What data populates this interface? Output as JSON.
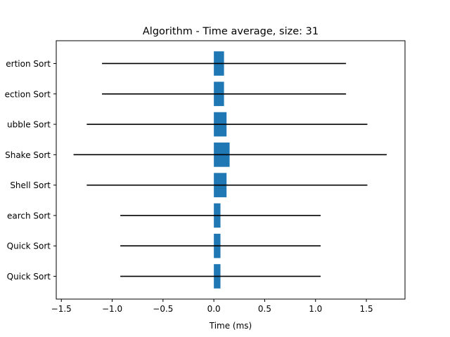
{
  "chart_data": {
    "type": "bar",
    "orientation": "horizontal",
    "title": "Algorithm - Time average, size: 31",
    "xlabel": "Time (ms)",
    "ylabel": "",
    "categories_visible": [
      "ertion Sort",
      "ection Sort",
      "ubble Sort",
      "Shake Sort",
      "Shell Sort",
      "earch Sort",
      "Quick Sort",
      "Quick Sort"
    ],
    "values": [
      0.1,
      0.1,
      0.125,
      0.155,
      0.125,
      0.065,
      0.065,
      0.065
    ],
    "error_low": [
      -1.1,
      -1.1,
      -1.25,
      -1.38,
      -1.25,
      -0.92,
      -0.92,
      -0.92
    ],
    "error_high": [
      1.3,
      1.3,
      1.51,
      1.7,
      1.51,
      1.05,
      1.05,
      1.05
    ],
    "xlim": [
      -1.55,
      1.88
    ],
    "xticks": [
      -1.5,
      -1.0,
      -0.5,
      0.0,
      0.5,
      1.0,
      1.5
    ],
    "xtick_labels": [
      "−1.5",
      "−1.0",
      "−0.5",
      "0.0",
      "0.5",
      "1.0",
      "1.5"
    ],
    "grid": false,
    "bar_color": "#1f77b4",
    "error_color": "#000000"
  }
}
